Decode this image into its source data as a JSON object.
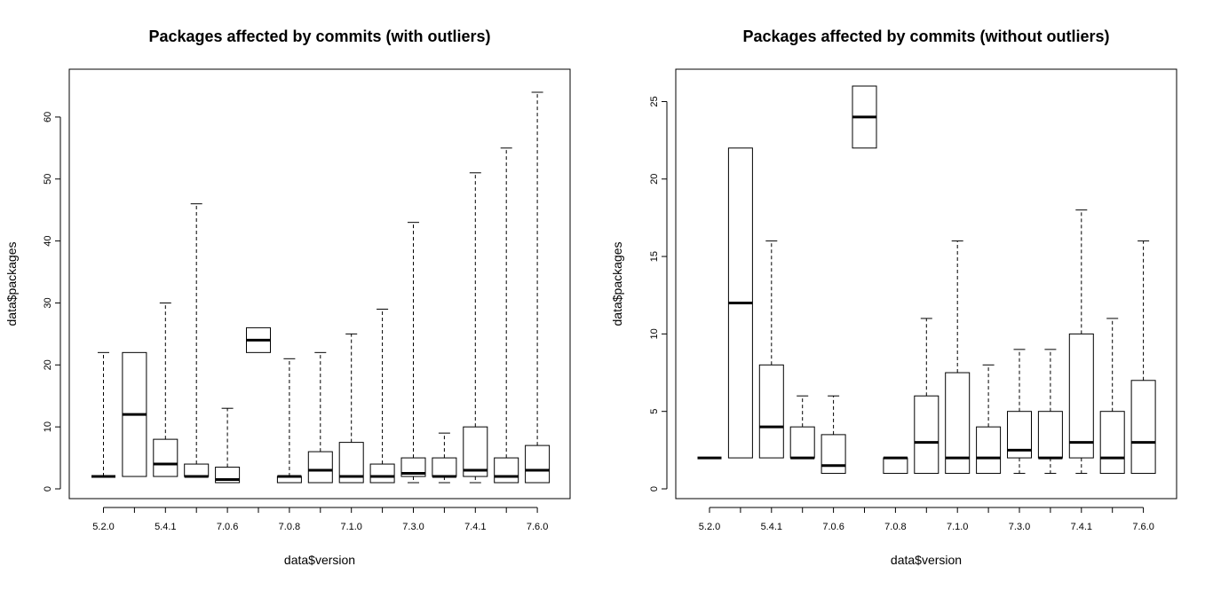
{
  "chart_data": [
    {
      "type": "boxplot",
      "title": "Packages affected by commits (with outliers)",
      "xlabel": "data$version",
      "ylabel": "data$packages",
      "ylim": [
        0,
        65
      ],
      "yticks": [
        0,
        10,
        20,
        30,
        40,
        50,
        60
      ],
      "categories": [
        "5.2.0",
        "",
        "5.4.1",
        "",
        "7.0.6",
        "",
        "7.0.8",
        "",
        "7.1.0",
        "",
        "7.3.0",
        "",
        "7.4.1",
        "",
        "7.6.0"
      ],
      "x_tick_labels": [
        "5.2.0",
        "5.4.1",
        "7.0.6",
        "7.0.8",
        "7.1.0",
        "7.3.0",
        "7.4.1",
        "7.6.0"
      ],
      "boxes": [
        {
          "lower": 2,
          "q1": 2,
          "median": 2,
          "q3": 2,
          "upper": 22
        },
        {
          "lower": 2,
          "q1": 2,
          "median": 12,
          "q3": 22,
          "upper": 22
        },
        {
          "lower": 2,
          "q1": 2,
          "median": 4,
          "q3": 8,
          "upper": 30
        },
        {
          "lower": 2,
          "q1": 2,
          "median": 2,
          "q3": 4,
          "upper": 46
        },
        {
          "lower": 1,
          "q1": 1,
          "median": 1.5,
          "q3": 3.5,
          "upper": 13
        },
        {
          "lower": 22,
          "q1": 22,
          "median": 24,
          "q3": 26,
          "upper": 26
        },
        {
          "lower": 1,
          "q1": 1,
          "median": 2,
          "q3": 2,
          "upper": 21
        },
        {
          "lower": 1,
          "q1": 1,
          "median": 3,
          "q3": 6,
          "upper": 22
        },
        {
          "lower": 1,
          "q1": 1,
          "median": 2,
          "q3": 7.5,
          "upper": 25
        },
        {
          "lower": 1,
          "q1": 1,
          "median": 2,
          "q3": 4,
          "upper": 29
        },
        {
          "lower": 1,
          "q1": 2,
          "median": 2.5,
          "q3": 5,
          "upper": 43
        },
        {
          "lower": 1,
          "q1": 2,
          "median": 2,
          "q3": 5,
          "upper": 9
        },
        {
          "lower": 1,
          "q1": 2,
          "median": 3,
          "q3": 10,
          "upper": 51
        },
        {
          "lower": 1,
          "q1": 1,
          "median": 2,
          "q3": 5,
          "upper": 55
        },
        {
          "lower": 1,
          "q1": 1,
          "median": 3,
          "q3": 7,
          "upper": 64
        }
      ]
    },
    {
      "type": "boxplot",
      "title": "Packages affected by commits (without outliers)",
      "xlabel": "data$version",
      "ylabel": "data$packages",
      "ylim": [
        0,
        26
      ],
      "yticks": [
        0,
        5,
        10,
        15,
        20,
        25
      ],
      "categories": [
        "5.2.0",
        "",
        "5.4.1",
        "",
        "7.0.6",
        "",
        "7.0.8",
        "",
        "7.1.0",
        "",
        "7.3.0",
        "",
        "7.4.1",
        "",
        "7.6.0"
      ],
      "x_tick_labels": [
        "5.2.0",
        "5.4.1",
        "7.0.6",
        "7.0.8",
        "7.1.0",
        "7.3.0",
        "7.4.1",
        "7.6.0"
      ],
      "boxes": [
        {
          "lower": 2,
          "q1": 2,
          "median": 2,
          "q3": 2,
          "upper": 2
        },
        {
          "lower": 2,
          "q1": 2,
          "median": 12,
          "q3": 22,
          "upper": 22
        },
        {
          "lower": 2,
          "q1": 2,
          "median": 4,
          "q3": 8,
          "upper": 16
        },
        {
          "lower": 2,
          "q1": 2,
          "median": 2,
          "q3": 4,
          "upper": 6
        },
        {
          "lower": 1,
          "q1": 1,
          "median": 1.5,
          "q3": 3.5,
          "upper": 6
        },
        {
          "lower": 22,
          "q1": 22,
          "median": 24,
          "q3": 26,
          "upper": 26
        },
        {
          "lower": 1,
          "q1": 1,
          "median": 2,
          "q3": 2,
          "upper": 2
        },
        {
          "lower": 1,
          "q1": 1,
          "median": 3,
          "q3": 6,
          "upper": 11
        },
        {
          "lower": 1,
          "q1": 1,
          "median": 2,
          "q3": 7.5,
          "upper": 16
        },
        {
          "lower": 1,
          "q1": 1,
          "median": 2,
          "q3": 4,
          "upper": 8
        },
        {
          "lower": 1,
          "q1": 2,
          "median": 2.5,
          "q3": 5,
          "upper": 9
        },
        {
          "lower": 1,
          "q1": 2,
          "median": 2,
          "q3": 5,
          "upper": 9
        },
        {
          "lower": 1,
          "q1": 2,
          "median": 3,
          "q3": 10,
          "upper": 18
        },
        {
          "lower": 1,
          "q1": 1,
          "median": 2,
          "q3": 5,
          "upper": 11
        },
        {
          "lower": 1,
          "q1": 1,
          "median": 3,
          "q3": 7,
          "upper": 16
        }
      ]
    }
  ]
}
